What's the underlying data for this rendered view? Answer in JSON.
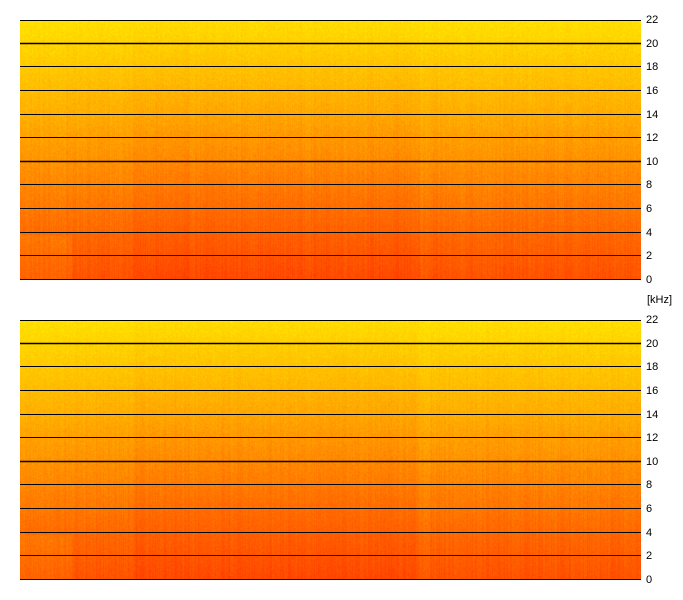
{
  "chart_data": [
    {
      "type": "heatmap",
      "panel": "top",
      "y_unit": "[kHz]",
      "ylim": [
        0,
        22
      ],
      "y_ticks": [
        "22",
        "20",
        "18",
        "16",
        "14",
        "12",
        "10",
        "8",
        "6",
        "4",
        "2",
        "0"
      ],
      "y_tick_values": [
        22,
        20,
        18,
        16,
        14,
        12,
        10,
        8,
        6,
        4,
        2,
        0
      ],
      "grid": true,
      "colormap": [
        "#ffee00",
        "#ffb200",
        "#ff7000",
        "#ff3a00"
      ]
    },
    {
      "type": "heatmap",
      "panel": "bottom",
      "ylim": [
        0,
        22
      ],
      "y_ticks": [
        "22",
        "20",
        "18",
        "16",
        "14",
        "12",
        "10",
        "8",
        "6",
        "4",
        "2",
        "0"
      ],
      "y_tick_values": [
        22,
        20,
        18,
        16,
        14,
        12,
        10,
        8,
        6,
        4,
        2,
        0
      ],
      "grid": true,
      "colormap": [
        "#ffee00",
        "#ffb200",
        "#ff7000",
        "#ff3a00"
      ]
    }
  ]
}
